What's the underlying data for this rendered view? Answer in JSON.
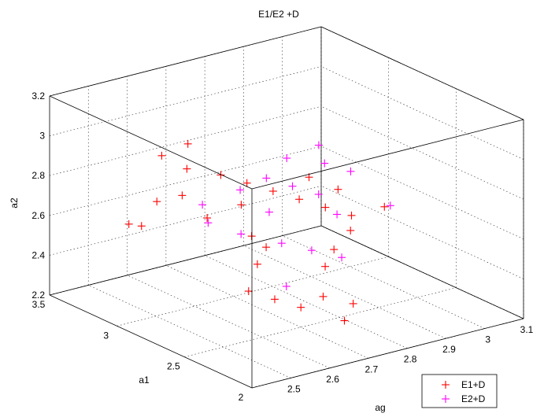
{
  "chart_data": {
    "type": "scatter",
    "title": "E1/E2 +D",
    "xlabel": "ag",
    "ylabel": "a1",
    "zlabel": "a2",
    "xlim": [
      2.4,
      3.1
    ],
    "ylim": [
      2.0,
      3.5
    ],
    "zlim": [
      2.2,
      3.2
    ],
    "xticks": [
      "2.5",
      "2.6",
      "2.7",
      "2.8",
      "2.9",
      "3",
      "3.1"
    ],
    "yticks": [
      "2",
      "2.5",
      "3",
      "3.5"
    ],
    "zticks": [
      "2.2",
      "2.4",
      "2.6",
      "2.8",
      "3",
      "3.2"
    ],
    "grid": true,
    "legend_position": "bottom-right",
    "marker": "+",
    "series": [
      {
        "name": "E1+D",
        "color": "#ff0000",
        "points": [
          [
            2.55,
            3.1,
            2.95
          ],
          [
            2.6,
            3.05,
            3.0
          ],
          [
            2.58,
            3.0,
            2.9
          ],
          [
            2.65,
            2.95,
            2.85
          ],
          [
            2.7,
            2.9,
            2.8
          ],
          [
            2.62,
            3.15,
            2.7
          ],
          [
            2.75,
            2.85,
            2.75
          ],
          [
            2.8,
            2.8,
            2.7
          ],
          [
            2.85,
            2.75,
            2.65
          ],
          [
            2.9,
            2.7,
            2.6
          ],
          [
            2.5,
            3.2,
            2.6
          ],
          [
            2.55,
            3.25,
            2.55
          ],
          [
            2.6,
            2.6,
            2.4
          ],
          [
            2.65,
            2.55,
            2.35
          ],
          [
            2.7,
            2.5,
            2.3
          ],
          [
            2.78,
            2.55,
            2.45
          ],
          [
            2.82,
            2.6,
            2.5
          ],
          [
            2.88,
            2.65,
            2.55
          ],
          [
            2.95,
            2.6,
            2.65
          ],
          [
            2.9,
            2.8,
            2.7
          ],
          [
            2.72,
            3.0,
            2.65
          ],
          [
            2.68,
            2.7,
            2.55
          ],
          [
            2.74,
            2.45,
            2.35
          ],
          [
            2.8,
            2.4,
            2.3
          ],
          [
            2.66,
            2.75,
            2.6
          ],
          [
            2.58,
            2.85,
            2.7
          ],
          [
            2.52,
            3.05,
            2.75
          ],
          [
            2.64,
            2.65,
            2.5
          ],
          [
            2.86,
            2.9,
            2.75
          ],
          [
            2.76,
            2.35,
            2.25
          ]
        ]
      },
      {
        "name": "E2+D",
        "color": "#ff00ff",
        "points": [
          [
            2.7,
            2.95,
            2.75
          ],
          [
            2.75,
            2.9,
            2.8
          ],
          [
            2.8,
            2.85,
            2.75
          ],
          [
            2.85,
            2.8,
            2.7
          ],
          [
            2.9,
            2.9,
            2.8
          ],
          [
            2.95,
            2.85,
            2.75
          ],
          [
            2.65,
            2.8,
            2.6
          ],
          [
            2.72,
            2.7,
            2.55
          ],
          [
            2.78,
            2.65,
            2.5
          ],
          [
            2.84,
            2.6,
            2.45
          ],
          [
            2.6,
            2.9,
            2.65
          ],
          [
            2.88,
            2.75,
            2.6
          ],
          [
            3.0,
            2.7,
            2.6
          ],
          [
            2.68,
            2.55,
            2.4
          ],
          [
            2.92,
            3.0,
            2.85
          ],
          [
            2.74,
            2.85,
            2.65
          ],
          [
            2.82,
            2.95,
            2.85
          ],
          [
            2.62,
            3.0,
            2.7
          ]
        ]
      }
    ]
  }
}
